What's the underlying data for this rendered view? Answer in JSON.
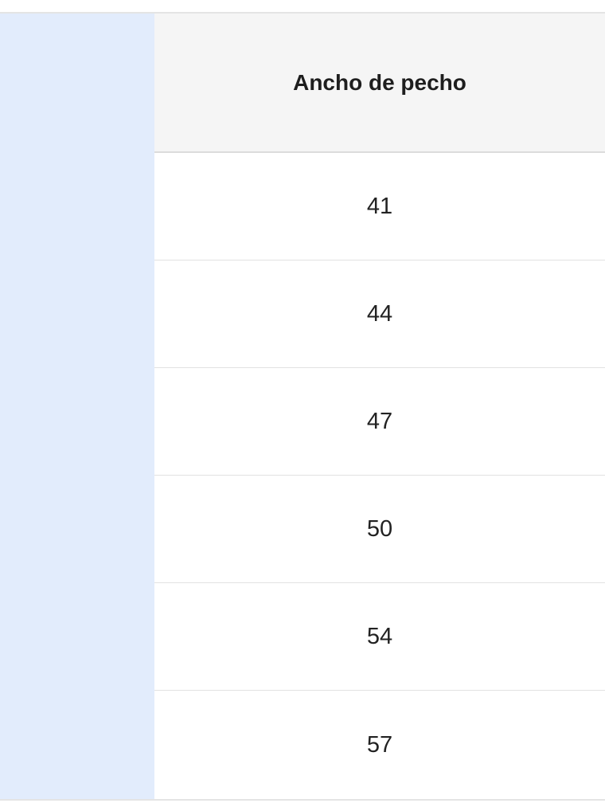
{
  "table": {
    "header": "Ancho de pecho",
    "values": [
      "41",
      "44",
      "47",
      "50",
      "54",
      "57"
    ],
    "colors": {
      "side_column": "#e2ecfc",
      "header_bg": "#f5f5f5"
    }
  }
}
